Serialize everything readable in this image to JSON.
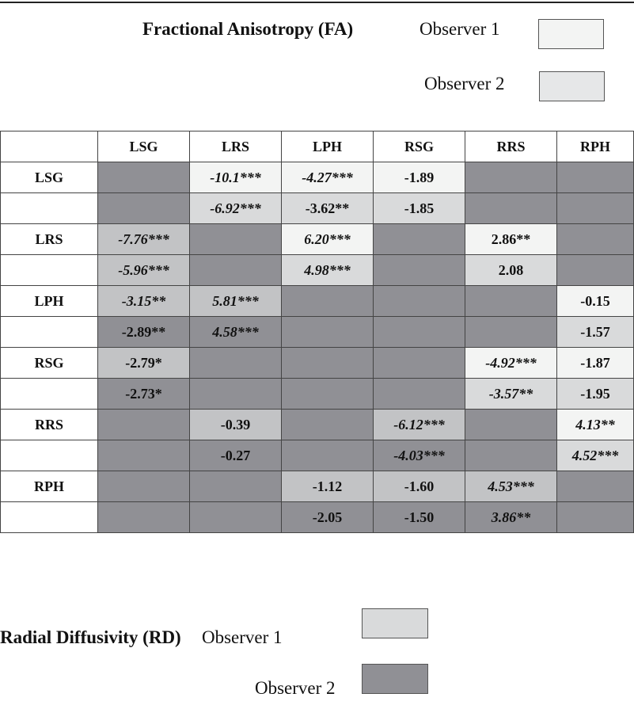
{
  "fa_legend": {
    "title": "Fractional Anisotropy (FA)",
    "observer1": "Observer 1",
    "observer2": "Observer 2",
    "observer1_color": "#f3f4f3",
    "observer2_color": "#e6e7e8"
  },
  "rd_legend": {
    "title": "Radial Diffusivity (RD)",
    "observer1": "Observer 1",
    "observer2": "Observer 2",
    "observer1_color": "#d9dadb",
    "observer2_color": "#909095"
  },
  "table": {
    "headers": [
      "",
      "LSG",
      "LRS",
      "LPH",
      "RSG",
      "RRS",
      "RPH"
    ],
    "rows": [
      {
        "label": "LSG",
        "cells": [
          {
            "v": "",
            "s": "dark"
          },
          {
            "v": "-10.1***",
            "s": "o1",
            "i": true
          },
          {
            "v": "-4.27***",
            "s": "o1",
            "i": true
          },
          {
            "v": "-1.89",
            "s": "o1"
          },
          {
            "v": "",
            "s": "dark"
          },
          {
            "v": "",
            "s": "dark"
          }
        ]
      },
      {
        "label": "",
        "cells": [
          {
            "v": "",
            "s": "dark"
          },
          {
            "v": "-6.92***",
            "s": "o2",
            "i": true
          },
          {
            "v": "-3.62**",
            "s": "o2"
          },
          {
            "v": "-1.85",
            "s": "o2"
          },
          {
            "v": "",
            "s": "dark"
          },
          {
            "v": "",
            "s": "dark"
          }
        ]
      },
      {
        "label": "LRS",
        "cells": [
          {
            "v": "-7.76***",
            "s": "mid",
            "i": true
          },
          {
            "v": "",
            "s": "dark"
          },
          {
            "v": "6.20***",
            "s": "o1",
            "i": true
          },
          {
            "v": "",
            "s": "dark"
          },
          {
            "v": "2.86**",
            "s": "o1"
          },
          {
            "v": "",
            "s": "dark"
          }
        ]
      },
      {
        "label": "",
        "cells": [
          {
            "v": "-5.96***",
            "s": "mid",
            "i": true
          },
          {
            "v": "",
            "s": "dark"
          },
          {
            "v": "4.98***",
            "s": "o2",
            "i": true
          },
          {
            "v": "",
            "s": "dark"
          },
          {
            "v": "2.08",
            "s": "o2"
          },
          {
            "v": "",
            "s": "dark"
          }
        ]
      },
      {
        "label": "LPH",
        "cells": [
          {
            "v": "-3.15**",
            "s": "mid",
            "i": true
          },
          {
            "v": "5.81***",
            "s": "mid",
            "i": true
          },
          {
            "v": "",
            "s": "dark"
          },
          {
            "v": "",
            "s": "dark"
          },
          {
            "v": "",
            "s": "dark"
          },
          {
            "v": "-0.15",
            "s": "o1"
          }
        ]
      },
      {
        "label": "",
        "cells": [
          {
            "v": "-2.89**",
            "s": "dark"
          },
          {
            "v": "4.58***",
            "s": "dark",
            "i": true
          },
          {
            "v": "",
            "s": "dark"
          },
          {
            "v": "",
            "s": "dark"
          },
          {
            "v": "",
            "s": "dark"
          },
          {
            "v": "-1.57",
            "s": "o2"
          }
        ]
      },
      {
        "label": "RSG",
        "cells": [
          {
            "v": "-2.79*",
            "s": "mid"
          },
          {
            "v": "",
            "s": "dark"
          },
          {
            "v": "",
            "s": "dark"
          },
          {
            "v": "",
            "s": "dark"
          },
          {
            "v": "-4.92***",
            "s": "o1",
            "i": true
          },
          {
            "v": "-1.87",
            "s": "o1"
          }
        ]
      },
      {
        "label": "",
        "cells": [
          {
            "v": "-2.73*",
            "s": "dark"
          },
          {
            "v": "",
            "s": "dark"
          },
          {
            "v": "",
            "s": "dark"
          },
          {
            "v": "",
            "s": "dark"
          },
          {
            "v": "-3.57**",
            "s": "o2",
            "i": true
          },
          {
            "v": "-1.95",
            "s": "o2"
          }
        ]
      },
      {
        "label": "RRS",
        "cells": [
          {
            "v": "",
            "s": "dark"
          },
          {
            "v": "-0.39",
            "s": "mid"
          },
          {
            "v": "",
            "s": "dark"
          },
          {
            "v": "-6.12***",
            "s": "mid",
            "i": true
          },
          {
            "v": "",
            "s": "dark"
          },
          {
            "v": "4.13**",
            "s": "o1",
            "i": true
          }
        ]
      },
      {
        "label": "",
        "cells": [
          {
            "v": "",
            "s": "dark"
          },
          {
            "v": "-0.27",
            "s": "dark"
          },
          {
            "v": "",
            "s": "dark"
          },
          {
            "v": "-4.03***",
            "s": "dark",
            "i": true
          },
          {
            "v": "",
            "s": "dark"
          },
          {
            "v": "4.52***",
            "s": "o2",
            "i": true
          }
        ]
      },
      {
        "label": "RPH",
        "cells": [
          {
            "v": "",
            "s": "dark"
          },
          {
            "v": "",
            "s": "dark"
          },
          {
            "v": "-1.12",
            "s": "mid"
          },
          {
            "v": "-1.60",
            "s": "mid"
          },
          {
            "v": "4.53***",
            "s": "mid",
            "i": true
          },
          {
            "v": "",
            "s": "dark"
          }
        ]
      },
      {
        "label": "",
        "cells": [
          {
            "v": "",
            "s": "dark"
          },
          {
            "v": "",
            "s": "dark"
          },
          {
            "v": "-2.05",
            "s": "dark"
          },
          {
            "v": "-1.50",
            "s": "dark"
          },
          {
            "v": "3.86**",
            "s": "dark",
            "i": true
          },
          {
            "v": "",
            "s": "dark"
          }
        ]
      }
    ]
  }
}
